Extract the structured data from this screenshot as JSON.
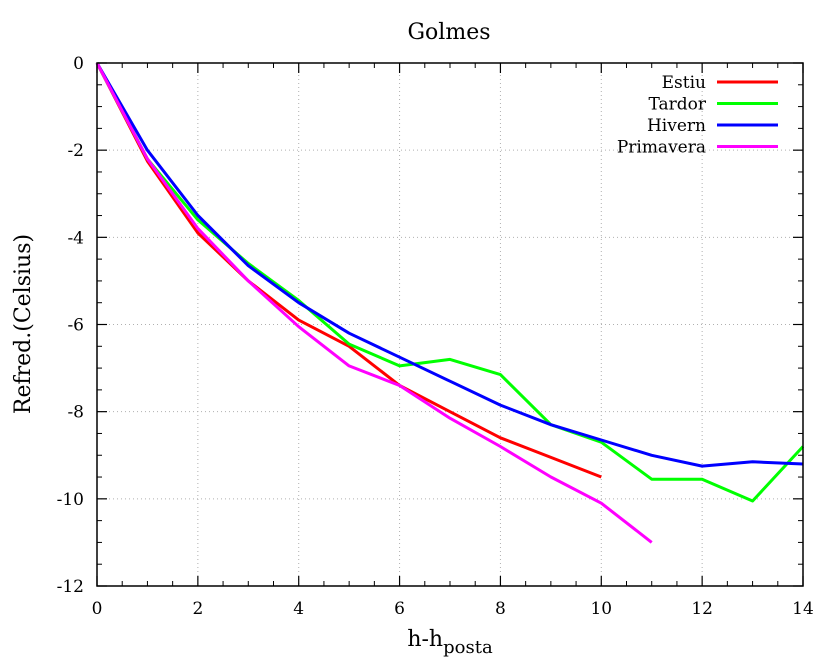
{
  "chart_data": {
    "type": "line",
    "title": "Golmes",
    "xlabel": "h-h",
    "xlabel_subscript": "posta",
    "ylabel": "Refred.(Celsius)",
    "xlim": [
      0,
      14
    ],
    "ylim": [
      -12,
      0
    ],
    "xticks": [
      "0",
      "2",
      "4",
      "6",
      "8",
      "10",
      "12",
      "14"
    ],
    "yticks": [
      "0",
      "-2",
      "-4",
      "-6",
      "-8",
      "-10",
      "-12"
    ],
    "grid": true,
    "legend_position": "top-right",
    "series": [
      {
        "name": "Estiu",
        "color": "#ff0000",
        "x": [
          0,
          1,
          2,
          3,
          4,
          5,
          6,
          7,
          8,
          9,
          10
        ],
        "y": [
          0,
          -2.25,
          -3.9,
          -5.0,
          -5.9,
          -6.5,
          -7.4,
          -8.0,
          -8.6,
          -9.05,
          -9.5
        ]
      },
      {
        "name": "Tardor",
        "color": "#00ff00",
        "x": [
          0,
          1,
          2,
          3,
          4,
          5,
          6,
          7,
          8,
          9,
          10,
          11,
          12,
          13,
          14
        ],
        "y": [
          0,
          -2.2,
          -3.6,
          -4.6,
          -5.45,
          -6.45,
          -6.95,
          -6.8,
          -7.15,
          -8.3,
          -8.7,
          -9.55,
          -9.55,
          -10.05,
          -8.8
        ]
      },
      {
        "name": "Hivern",
        "color": "#0000ff",
        "x": [
          0,
          1,
          2,
          3,
          4,
          5,
          6,
          7,
          8,
          9,
          10,
          11,
          12,
          13,
          14
        ],
        "y": [
          0,
          -2.0,
          -3.5,
          -4.65,
          -5.5,
          -6.2,
          -6.75,
          -7.3,
          -7.85,
          -8.3,
          -8.65,
          -9.0,
          -9.25,
          -9.15,
          -9.2
        ]
      },
      {
        "name": "Primavera",
        "color": "#ff00ff",
        "x": [
          0,
          1,
          2,
          3,
          4,
          5,
          6,
          7,
          8,
          9,
          10,
          11
        ],
        "y": [
          0,
          -2.2,
          -3.8,
          -5.0,
          -6.05,
          -6.95,
          -7.4,
          -8.15,
          -8.8,
          -9.5,
          -10.1,
          -11.0
        ]
      }
    ]
  }
}
